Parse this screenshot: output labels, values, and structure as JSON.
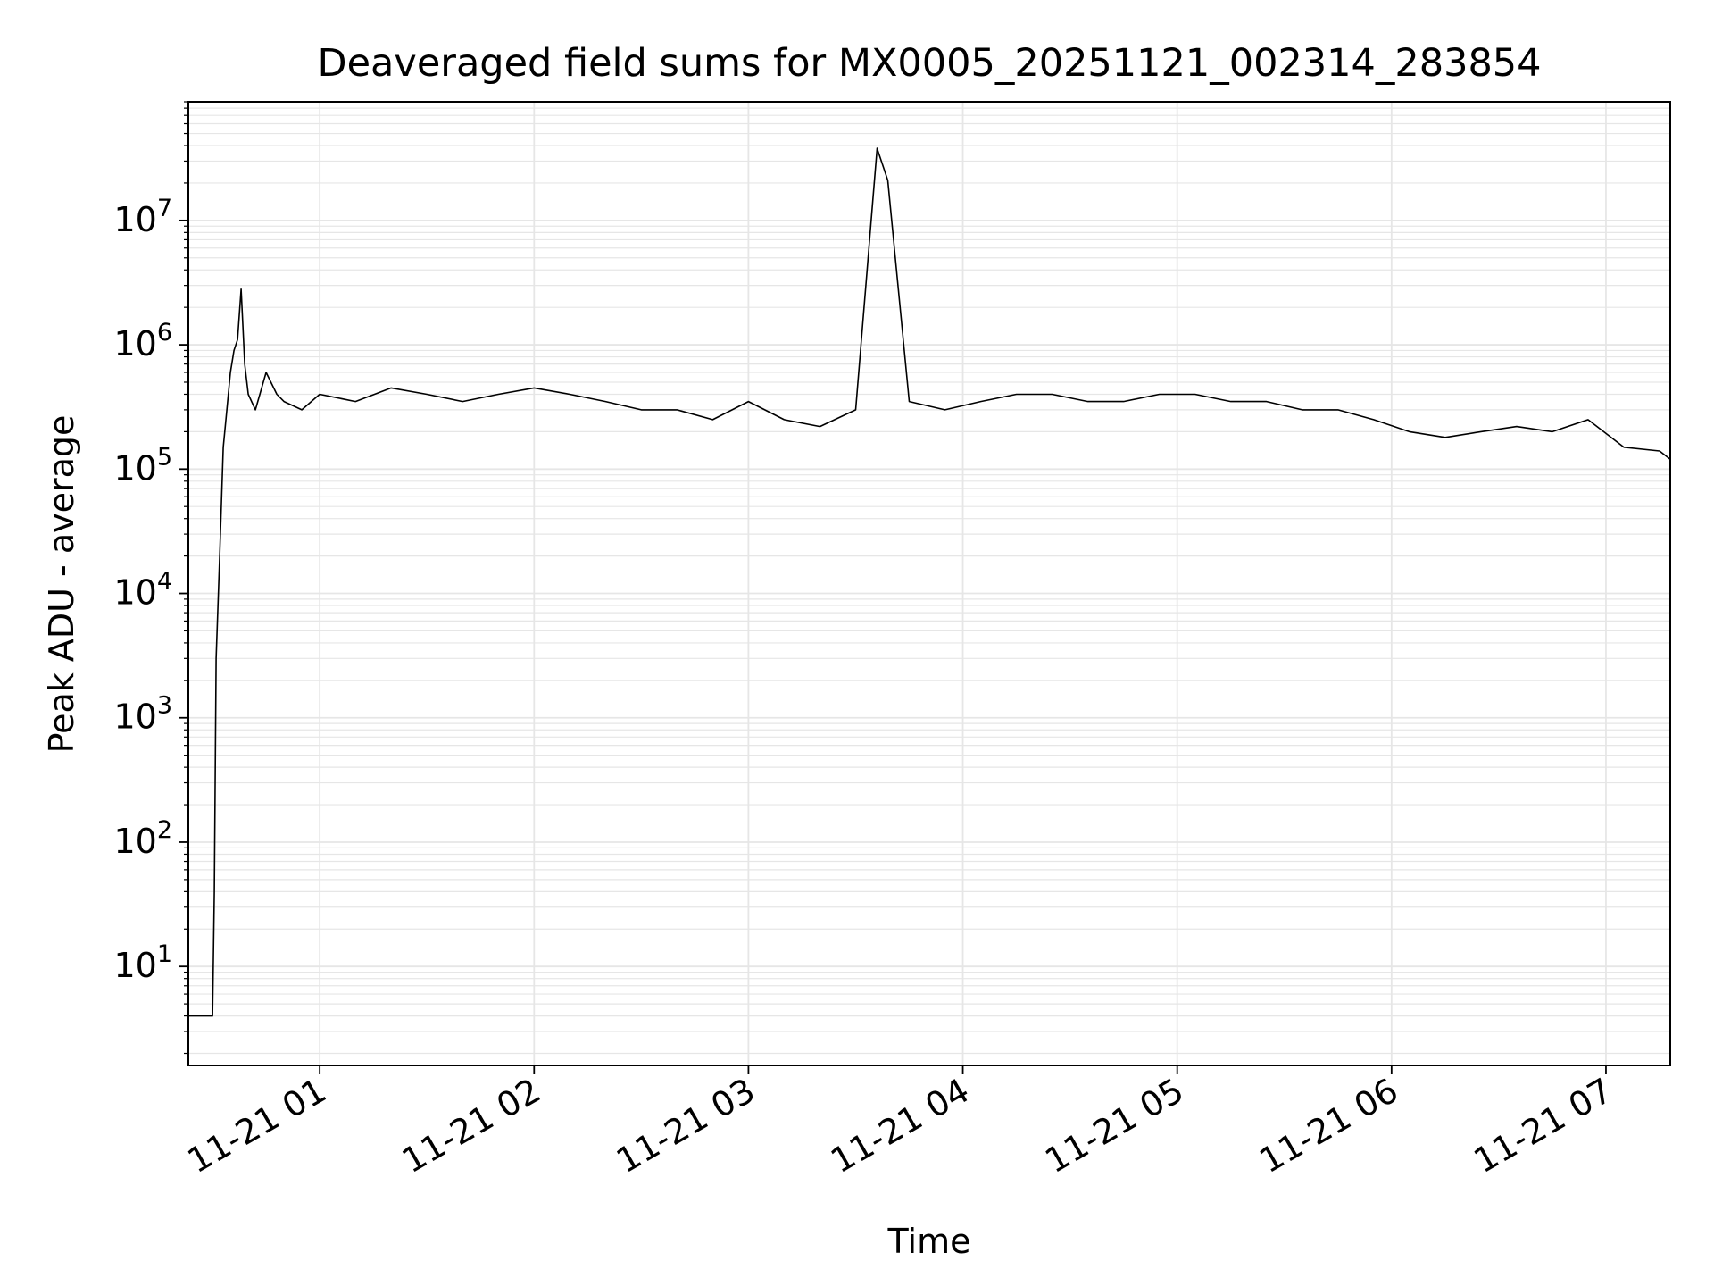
{
  "chart_data": {
    "type": "line",
    "title": "Deaveraged field sums for MX0005_20251121_002314_283854",
    "xlabel": "Time",
    "ylabel": "Peak ADU - average",
    "yscale": "log",
    "ylim": [
      1.6,
      90000000
    ],
    "xlim": [
      "2025-11-21 00:23:14",
      "2025-11-21 07:18:00"
    ],
    "grid": true,
    "x_tick_labels": [
      "11-21 01",
      "11-21 02",
      "11-21 03",
      "11-21 04",
      "11-21 05",
      "11-21 06",
      "11-21 07"
    ],
    "x_ticks": [
      "2025-11-21 01:00",
      "2025-11-21 02:00",
      "2025-11-21 03:00",
      "2025-11-21 04:00",
      "2025-11-21 05:00",
      "2025-11-21 06:00",
      "2025-11-21 07:00"
    ],
    "y_tick_base": "10",
    "y_tick_exponents": [
      "1",
      "2",
      "3",
      "4",
      "5",
      "6",
      "7"
    ],
    "y_ticks": [
      10,
      100,
      1000,
      10000,
      100000,
      1000000,
      10000000
    ],
    "line_color": "#000000",
    "grid_color": "#e6e6e6",
    "series": [
      {
        "x": [
          "2025-11-21 00:23:14",
          "2025-11-21 00:30:00",
          "2025-11-21 00:30:30",
          "2025-11-21 00:31:00",
          "2025-11-21 00:32:00",
          "2025-11-21 00:33:00",
          "2025-11-21 00:34:00",
          "2025-11-21 00:35:00",
          "2025-11-21 00:36:00",
          "2025-11-21 00:37:00",
          "2025-11-21 00:38:00",
          "2025-11-21 00:39:00",
          "2025-11-21 00:40:00",
          "2025-11-21 00:42:00",
          "2025-11-21 00:45:00",
          "2025-11-21 00:48:00",
          "2025-11-21 00:50:00",
          "2025-11-21 00:55:00",
          "2025-11-21 01:00:00",
          "2025-11-21 01:10:00",
          "2025-11-21 01:20:00",
          "2025-11-21 01:30:00",
          "2025-11-21 01:40:00",
          "2025-11-21 01:50:00",
          "2025-11-21 02:00:00",
          "2025-11-21 02:10:00",
          "2025-11-21 02:20:00",
          "2025-11-21 02:30:00",
          "2025-11-21 02:40:00",
          "2025-11-21 02:50:00",
          "2025-11-21 03:00:00",
          "2025-11-21 03:10:00",
          "2025-11-21 03:20:00",
          "2025-11-21 03:30:00",
          "2025-11-21 03:36:00",
          "2025-11-21 03:39:00",
          "2025-11-21 03:45:00",
          "2025-11-21 03:55:00",
          "2025-11-21 04:05:00",
          "2025-11-21 04:15:00",
          "2025-11-21 04:25:00",
          "2025-11-21 04:35:00",
          "2025-11-21 04:45:00",
          "2025-11-21 04:55:00",
          "2025-11-21 05:05:00",
          "2025-11-21 05:15:00",
          "2025-11-21 05:25:00",
          "2025-11-21 05:35:00",
          "2025-11-21 05:45:00",
          "2025-11-21 05:55:00",
          "2025-11-21 06:05:00",
          "2025-11-21 06:15:00",
          "2025-11-21 06:25:00",
          "2025-11-21 06:35:00",
          "2025-11-21 06:45:00",
          "2025-11-21 06:55:00",
          "2025-11-21 07:05:00",
          "2025-11-21 07:15:00",
          "2025-11-21 07:18:00"
        ],
        "y": [
          4,
          4,
          40,
          3000,
          20000,
          150000,
          300000,
          600000,
          900000,
          1100000,
          2800000,
          700000,
          400000,
          300000,
          600000,
          400000,
          350000,
          300000,
          400000,
          350000,
          450000,
          400000,
          350000,
          400000,
          450000,
          400000,
          350000,
          300000,
          300000,
          250000,
          350000,
          250000,
          220000,
          300000,
          38000000,
          21000000,
          350000,
          300000,
          350000,
          400000,
          400000,
          350000,
          350000,
          400000,
          400000,
          350000,
          350000,
          300000,
          300000,
          250000,
          200000,
          180000,
          200000,
          220000,
          200000,
          250000,
          150000,
          140000,
          120000
        ]
      }
    ]
  }
}
